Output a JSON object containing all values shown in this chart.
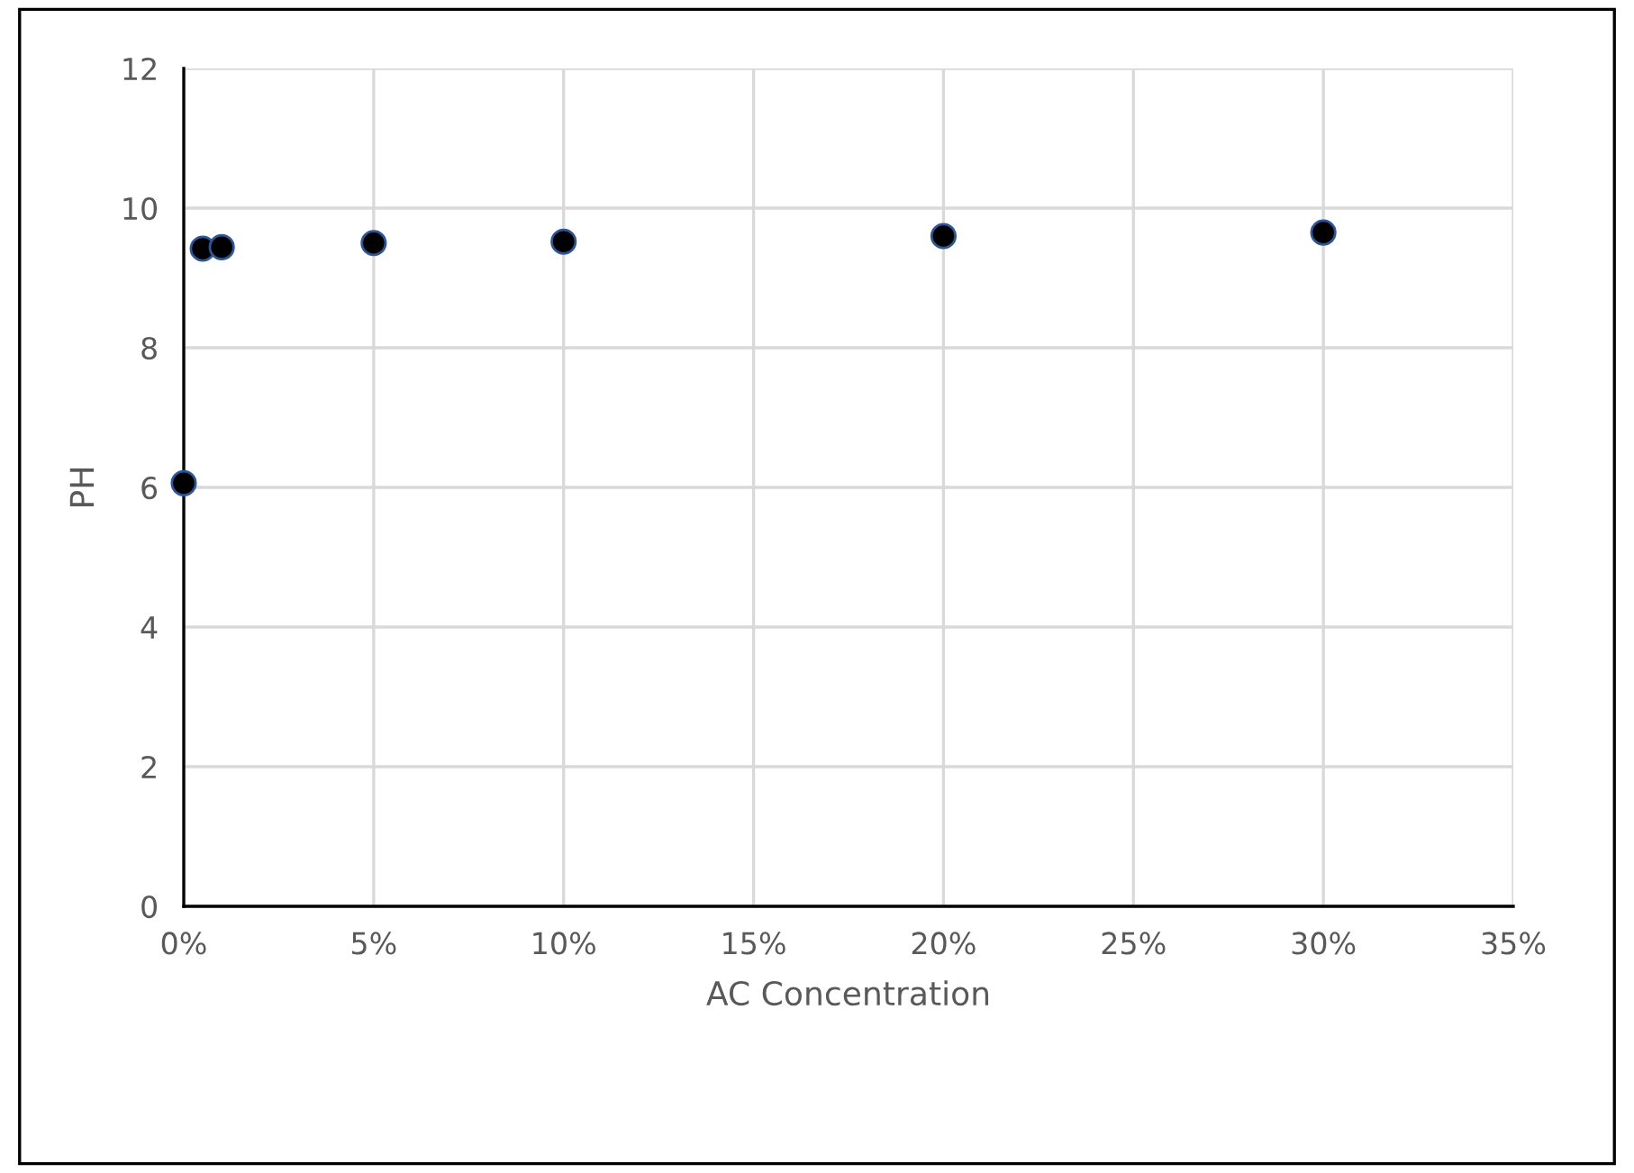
{
  "chart_data": {
    "type": "scatter",
    "xlabel": "AC Concentration",
    "ylabel": "PH",
    "x": [
      0,
      0.5,
      1,
      5,
      10,
      20,
      30
    ],
    "series": [
      {
        "color": "#000000",
        "values": [
          6.06,
          9.42,
          9.44,
          9.5,
          9.52,
          9.6,
          9.65
        ]
      }
    ],
    "xlim": [
      0,
      35
    ],
    "xticks": [
      {
        "value": 0,
        "label": "0%"
      },
      {
        "value": 5,
        "label": "5%"
      },
      {
        "value": 10,
        "label": "10%"
      },
      {
        "value": 15,
        "label": "15%"
      },
      {
        "value": 20,
        "label": "20%"
      },
      {
        "value": 25,
        "label": "25%"
      },
      {
        "value": 30,
        "label": "30%"
      },
      {
        "value": 35,
        "label": "35%"
      }
    ],
    "ylim": [
      0,
      12
    ],
    "yticks": [
      0,
      2,
      4,
      6,
      8,
      10,
      12
    ],
    "grid": true,
    "marker": "circle",
    "legend": false
  }
}
